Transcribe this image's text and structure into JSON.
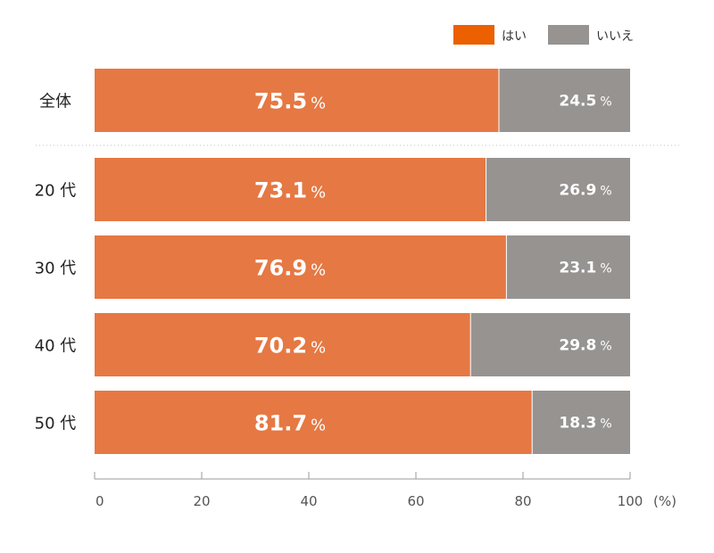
{
  "chart_data": {
    "type": "bar",
    "orientation": "horizontal",
    "stacked": true,
    "categories": [
      "全体",
      "20 代",
      "30 代",
      "40 代",
      "50 代"
    ],
    "series": [
      {
        "name": "はい",
        "values": [
          75.5,
          73.1,
          76.9,
          70.2,
          81.7
        ],
        "color": "#e67843"
      },
      {
        "name": "いいえ",
        "values": [
          24.5,
          26.9,
          23.1,
          29.8,
          18.3
        ],
        "color": "#969391"
      }
    ],
    "value_suffix": "%",
    "x_ticks": [
      0,
      20,
      40,
      60,
      80,
      100
    ],
    "x_unit": "(%)",
    "xlim": [
      0,
      100
    ],
    "legend_position": "top-right",
    "legend_swatch_color_yes": "#ec6000",
    "separator_after_category": "全体",
    "grid": false
  }
}
